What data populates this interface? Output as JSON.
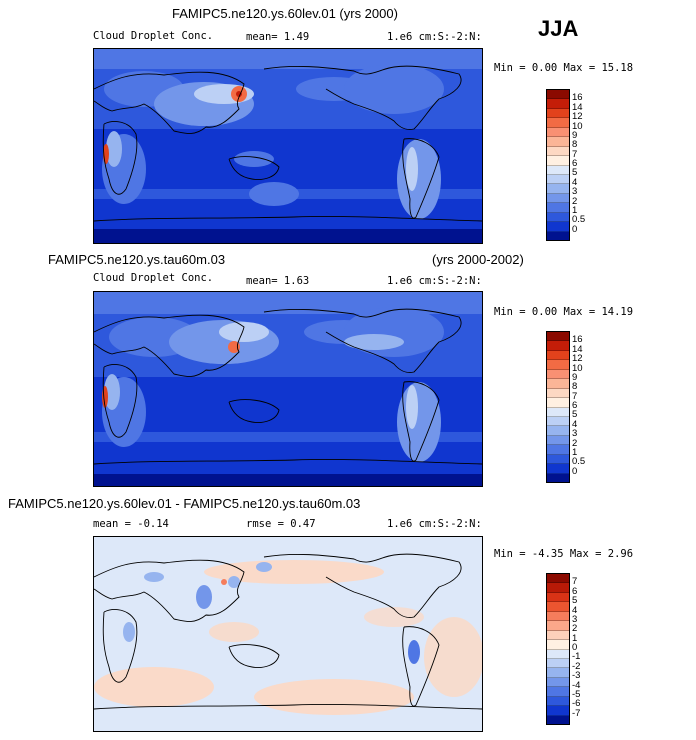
{
  "season": "JJA",
  "panels": [
    {
      "title": "FAMIPC5.ne120.ys.60lev.01 (yrs 2000)",
      "title_right": "",
      "field": "Cloud Droplet Conc.",
      "mean_text": "mean=    1.49",
      "units": "1.e6 cm:S:-2:N:",
      "minmax": "Min =   0.00 Max =  15.18",
      "colorbar_labels": [
        "16",
        "14",
        "12",
        "10",
        "9",
        "8",
        "7",
        "6",
        "5",
        "4",
        "3",
        "2",
        "1",
        "0.5",
        "0"
      ],
      "colorbar_colors": [
        "#8b0a00",
        "#c41d08",
        "#e2421c",
        "#f26b44",
        "#f99073",
        "#fbb597",
        "#fdd8c3",
        "#fff0e2",
        "#dde8f9",
        "#bcd0f5",
        "#96b4ef",
        "#7396ea",
        "#4f76e4",
        "#2e58dc",
        "#1036cf",
        "#00128f"
      ]
    },
    {
      "title": "FAMIPC5.ne120.ys.tau60m.03",
      "title_right": "(yrs 2000-2002)",
      "field": "Cloud Droplet Conc.",
      "mean_text": "mean=    1.63",
      "units": "1.e6 cm:S:-2:N:",
      "minmax": "Min =   0.00 Max =  14.19",
      "colorbar_labels": [
        "16",
        "14",
        "12",
        "10",
        "9",
        "8",
        "7",
        "6",
        "5",
        "4",
        "3",
        "2",
        "1",
        "0.5",
        "0"
      ],
      "colorbar_colors": [
        "#8b0a00",
        "#c41d08",
        "#e2421c",
        "#f26b44",
        "#f99073",
        "#fbb597",
        "#fdd8c3",
        "#fff0e2",
        "#dde8f9",
        "#bcd0f5",
        "#96b4ef",
        "#7396ea",
        "#4f76e4",
        "#2e58dc",
        "#1036cf",
        "#00128f"
      ]
    },
    {
      "title": "FAMIPC5.ne120.ys.60lev.01 - FAMIPC5.ne120.ys.tau60m.03",
      "title_right": "",
      "field": "",
      "mean_text": "mean =   -0.14",
      "rmse_text": "rmse =   0.47",
      "units": "1.e6 cm:S:-2:N:",
      "minmax": "Min = -4.35 Max =   2.96",
      "colorbar_labels": [
        "7",
        "6",
        "5",
        "4",
        "3",
        "2",
        "1",
        "0",
        "-1",
        "-2",
        "-3",
        "-4",
        "-5",
        "-6",
        "-7"
      ],
      "colorbar_colors": [
        "#8b0a00",
        "#b81a07",
        "#d93316",
        "#eb5530",
        "#f57d5c",
        "#fba78a",
        "#fdd0ba",
        "#fff0e2",
        "#dde8f9",
        "#bcd0f5",
        "#96b4ef",
        "#7396ea",
        "#4f76e4",
        "#2e58dc",
        "#1036cf",
        "#00128f"
      ]
    }
  ]
}
